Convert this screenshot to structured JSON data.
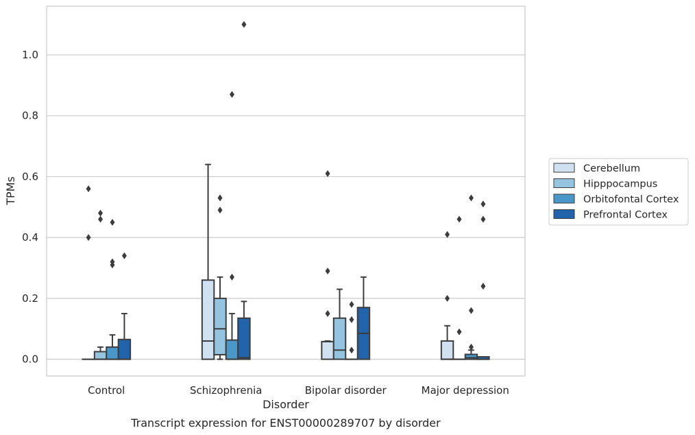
{
  "chart_data": {
    "type": "boxplot",
    "caption": "Transcript expression for ENST00000289707 by disorder",
    "xlabel": "Disorder",
    "ylabel": "TPMs",
    "ylim": [
      -0.055,
      1.16
    ],
    "yticks": [
      0.0,
      0.2,
      0.4,
      0.6,
      0.8,
      1.0
    ],
    "grid": "horizontal",
    "legend_position": "right",
    "categories": [
      "Control",
      "Schizophrenia",
      "Bipolar disorder",
      "Major depression"
    ],
    "series": [
      {
        "name": "Cerebellum",
        "color": "#d0e1f2",
        "boxes": [
          {
            "min": 0.0,
            "q1": 0.0,
            "median": 0.0,
            "q3": 0.0,
            "max": 0.0,
            "outliers": [
              0.56,
              0.4
            ]
          },
          {
            "min": 0.0,
            "q1": 0.0,
            "median": 0.06,
            "q3": 0.26,
            "max": 0.64,
            "outliers": []
          },
          {
            "min": 0.0,
            "q1": 0.0,
            "median": 0.058,
            "q3": 0.058,
            "max": 0.06,
            "outliers": [
              0.61,
              0.29,
              0.15
            ]
          },
          {
            "min": 0.0,
            "q1": 0.0,
            "median": 0.0,
            "q3": 0.06,
            "max": 0.11,
            "outliers": [
              0.41,
              0.2
            ]
          }
        ]
      },
      {
        "name": "Hipppocampus",
        "color": "#94c4df",
        "boxes": [
          {
            "min": 0.0,
            "q1": 0.0,
            "median": 0.0,
            "q3": 0.025,
            "max": 0.04,
            "outliers": [
              0.48,
              0.46
            ]
          },
          {
            "min": 0.0,
            "q1": 0.015,
            "median": 0.1,
            "q3": 0.2,
            "max": 0.27,
            "outliers": [
              0.53,
              0.49
            ]
          },
          {
            "min": 0.0,
            "q1": 0.0,
            "median": 0.03,
            "q3": 0.135,
            "max": 0.23,
            "outliers": []
          },
          {
            "min": 0.0,
            "q1": 0.0,
            "median": 0.0,
            "q3": 0.0,
            "max": 0.0,
            "outliers": [
              0.46,
              0.09
            ]
          }
        ]
      },
      {
        "name": "Orbitofontal Cortex",
        "color": "#4a98c9",
        "boxes": [
          {
            "min": 0.0,
            "q1": 0.0,
            "median": 0.0,
            "q3": 0.04,
            "max": 0.08,
            "outliers": [
              0.45,
              0.32,
              0.31
            ]
          },
          {
            "min": 0.0,
            "q1": 0.0,
            "median": 0.0,
            "q3": 0.063,
            "max": 0.15,
            "outliers": [
              0.87,
              0.27
            ]
          },
          {
            "min": 0.0,
            "q1": 0.0,
            "median": 0.0,
            "q3": 0.0,
            "max": 0.0,
            "outliers": [
              0.18,
              0.13,
              0.03
            ]
          },
          {
            "min": 0.0,
            "q1": 0.0,
            "median": 0.005,
            "q3": 0.016,
            "max": 0.03,
            "outliers": [
              0.53,
              0.16,
              0.04
            ]
          }
        ]
      },
      {
        "name": "Prefrontal Cortex",
        "color": "#2164ab",
        "boxes": [
          {
            "min": 0.0,
            "q1": 0.0,
            "median": 0.0,
            "q3": 0.065,
            "max": 0.15,
            "outliers": [
              0.34
            ]
          },
          {
            "min": 0.0,
            "q1": 0.0,
            "median": 0.005,
            "q3": 0.135,
            "max": 0.19,
            "outliers": [
              1.1
            ]
          },
          {
            "min": 0.0,
            "q1": 0.0,
            "median": 0.085,
            "q3": 0.17,
            "max": 0.27,
            "outliers": []
          },
          {
            "min": 0.0,
            "q1": 0.0,
            "median": 0.0,
            "q3": 0.008,
            "max": 0.008,
            "outliers": [
              0.51,
              0.46,
              0.24
            ]
          }
        ]
      }
    ]
  }
}
